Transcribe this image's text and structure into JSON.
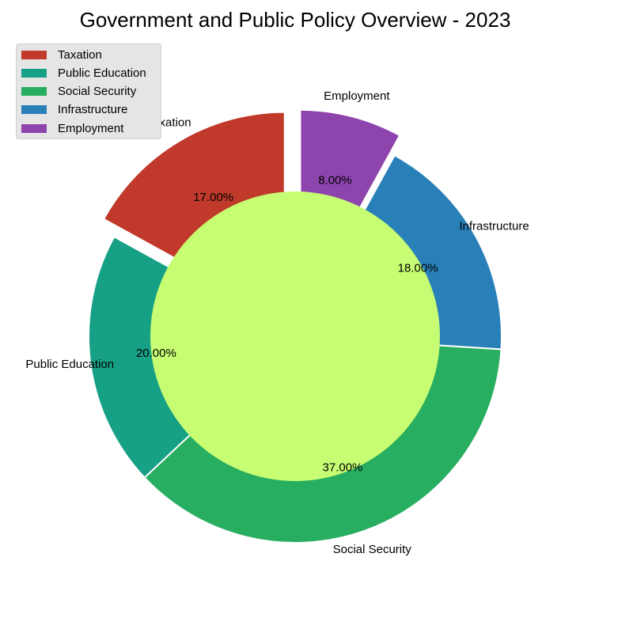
{
  "chart_data": {
    "type": "pie",
    "title": "Government and Public Policy Overview - 2023",
    "categories": [
      "Taxation",
      "Public Education",
      "Social Security",
      "Infrastructure",
      "Employment"
    ],
    "values": [
      17,
      20,
      37,
      18,
      8
    ],
    "value_labels": [
      "17.00%",
      "20.00%",
      "37.00%",
      "18.00%",
      "8.00%"
    ],
    "colors": [
      "#c0392b",
      "#16a085",
      "#27ae60",
      "#2980b9",
      "#8e44ad"
    ],
    "exploded": [
      "Taxation",
      "Employment"
    ],
    "donut_center_color": "#c6fd72",
    "legend_position": "upper-left"
  }
}
